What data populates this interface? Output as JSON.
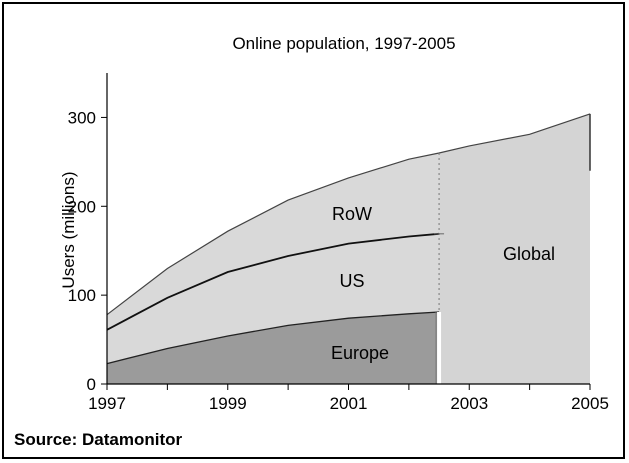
{
  "chart_data": {
    "type": "area",
    "title": "Online population, 1997-2005",
    "ylabel": "Users (millions)",
    "xlabel": "",
    "xlim": [
      1997,
      2005
    ],
    "ylim": [
      0,
      350
    ],
    "x_ticks": [
      "1997",
      "1999",
      "2001",
      "2003",
      "2005"
    ],
    "y_ticks": [
      "0",
      "100",
      "200",
      "300"
    ],
    "split_year": 2002.5,
    "series": [
      {
        "name": "Europe",
        "fill": "#9b9b9b",
        "x": [
          1997,
          1998,
          1999,
          2000,
          2001,
          2002,
          2002.5
        ],
        "values": [
          23,
          40,
          54,
          66,
          74,
          79,
          81
        ]
      },
      {
        "name": "US",
        "fill": "#d9d9d9",
        "x": [
          1997,
          1998,
          1999,
          2000,
          2001,
          2002,
          2002.5
        ],
        "values": [
          61,
          97,
          126,
          144,
          158,
          166,
          169
        ]
      },
      {
        "name": "RoW",
        "fill": "#d9d9d9",
        "x": [
          1997,
          1998,
          1999,
          2000,
          2001,
          2002,
          2002.5
        ],
        "values": [
          78,
          130,
          172,
          207,
          232,
          253,
          260
        ]
      },
      {
        "name": "Global",
        "fill": "#d4d4d4",
        "x": [
          2002.5,
          2003,
          2004,
          2005
        ],
        "values": [
          260,
          268,
          281,
          304
        ]
      }
    ],
    "labels": {
      "row": "RoW",
      "us": "US",
      "europe": "Europe",
      "global": "Global"
    },
    "source": "Source: Datamonitor"
  }
}
